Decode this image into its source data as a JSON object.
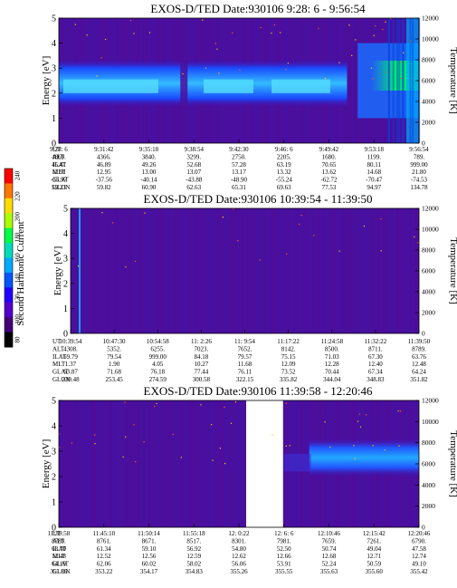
{
  "colorbar": {
    "label": "Second Harmonic Current",
    "ticks": [
      "240",
      "220",
      "200",
      "180",
      "160",
      "140",
      "120",
      "100",
      "80"
    ],
    "colors": [
      "#ff0000",
      "#ff7700",
      "#ffdd00",
      "#aaff00",
      "#00ff44",
      "#00ddbb",
      "#00aaff",
      "#0055ff",
      "#2200ff",
      "#5500cc",
      "#440077",
      "#000000"
    ]
  },
  "chart_data": [
    {
      "type": "heatmap",
      "title": "EXOS-D/TED   Date:930106  9:28: 6 - 9:56:54",
      "ylabel": "Energy [eV]",
      "y2label": "Temperature [K]",
      "ylim": [
        0,
        5
      ],
      "y2lim": [
        0,
        12000
      ],
      "yticks": [
        "0",
        "1",
        "2",
        "3",
        "4",
        "5"
      ],
      "y2ticks": [
        "0",
        "2000",
        "4000",
        "6000",
        "8000",
        "10000",
        "12000"
      ],
      "band": {
        "center_eV": 2.4,
        "width_eV": 1.0
      },
      "gap": null,
      "table": {
        "labels": [
          "UT",
          "ALT",
          "ILAT",
          "MLT",
          "GLAT",
          "GLON"
        ],
        "columns": [
          [
            "9:28: 6",
            "4869.",
            "45.41",
            "12.91",
            "-35.97",
            "59.23"
          ],
          [
            "9:31:42",
            "4366.",
            "46.89",
            "12.95",
            "-37.56",
            "59.82"
          ],
          [
            "9:35:18",
            "3840.",
            "49.26",
            "13.00",
            "-40.14",
            "60.90"
          ],
          [
            "9:38:54",
            "3299.",
            "52.68",
            "13.07",
            "-43.88",
            "62.63"
          ],
          [
            "9:42:30",
            "2750.",
            "57.28",
            "13.17",
            "-48.90",
            "65.31"
          ],
          [
            "9:46: 6",
            "2205.",
            "63.19",
            "13.32",
            "-55.24",
            "69.63"
          ],
          [
            "9:49:42",
            "1680.",
            "70.65",
            "13.62",
            "-62.72",
            "77.53"
          ],
          [
            "9:53:18",
            "1199.",
            "80.11",
            "14.68",
            "-70.47",
            "94.97"
          ],
          [
            "9:56:54",
            "789.",
            "999.00",
            "21.80",
            "-74.53",
            "134.78"
          ]
        ]
      }
    },
    {
      "type": "heatmap",
      "title": "EXOS-D/TED   Date:930106  10:39:54 - 11:39:50",
      "ylabel": "Energy [eV]",
      "y2label": "Temperature [K]",
      "ylim": [
        0,
        5
      ],
      "y2lim": [
        0,
        12000
      ],
      "yticks": [
        "0",
        "1",
        "2",
        "3",
        "4",
        "5"
      ],
      "y2ticks": [
        "0",
        "2000",
        "4000",
        "6000",
        "8000",
        "10000",
        "12000"
      ],
      "band": null,
      "gap": null,
      "table": {
        "labels": [
          "UT",
          "ALT",
          "ILAT",
          "MLT",
          "GLAT",
          "GLON"
        ],
        "columns": [
          [
            "10:39:54",
            "4308.",
            "69.79",
            "1.37",
            "63.87",
            "239.48"
          ],
          [
            "10:47:30",
            "5352.",
            "79.54",
            "1.90",
            "71.68",
            "253.45"
          ],
          [
            "10:54:58",
            "6255.",
            "999.00",
            "4.05",
            "76.18",
            "274.59"
          ],
          [
            "11: 2:26",
            "7023.",
            "84.18",
            "10.27",
            "77.44",
            "300.58"
          ],
          [
            "11: 9:54",
            "7652.",
            "79.57",
            "11.68",
            "76.11",
            "322.15"
          ],
          [
            "11:17:22",
            "8142.",
            "75.15",
            "12.09",
            "73.52",
            "335.82"
          ],
          [
            "11:24:58",
            "8500.",
            "71.03",
            "12.28",
            "70.44",
            "344.04"
          ],
          [
            "11:32:22",
            "8711.",
            "67.30",
            "12.40",
            "67.34",
            "348.83"
          ],
          [
            "11:39:50",
            "8789.",
            "63.76",
            "12.48",
            "64.24",
            "351.82"
          ]
        ]
      }
    },
    {
      "type": "heatmap",
      "title": "EXOS-D/TED   Date:930106  11:39:58 - 12:20:46",
      "ylabel": "Energy [eV]",
      "y2label": "Temperature [K]",
      "ylim": [
        0,
        5
      ],
      "y2lim": [
        0,
        12000
      ],
      "yticks": [
        "0",
        "1",
        "2",
        "3",
        "4",
        "5"
      ],
      "y2ticks": [
        "0",
        "2000",
        "4000",
        "6000",
        "8000",
        "10000",
        "12000"
      ],
      "band": {
        "center_eV": 2.75,
        "width_eV": 0.8
      },
      "gap": {
        "from_col": 4,
        "to_col": 5
      },
      "table": {
        "labels": [
          "UT",
          "ALT",
          "ILAT",
          "MLT",
          "GLAT",
          "GLON"
        ],
        "columns": [
          [
            "11:39:58",
            "8789.",
            "63.70",
            "12.48",
            "64.19",
            "351.86"
          ],
          [
            "11:45:10",
            "8761.",
            "61.34",
            "12.52",
            "62.06",
            "353.22"
          ],
          [
            "11:50:14",
            "8671.",
            "59.10",
            "12.56",
            "60.02",
            "354.17"
          ],
          [
            "11:55:18",
            "8517.",
            "56.92",
            "12.59",
            "58.02",
            "354.83"
          ],
          [
            "12: 0:22",
            "8301.",
            "54.80",
            "12.62",
            "56.06",
            "355.26"
          ],
          [
            "12: 6: 6",
            "7981.",
            "52.50",
            "12.66",
            "53.91",
            "355.55"
          ],
          [
            "12:10:46",
            "7659.",
            "50.74",
            "12.68",
            "52.24",
            "355.63"
          ],
          [
            "12:15:42",
            "7261.",
            "49.04",
            "12.71",
            "50.59",
            "355.60"
          ],
          [
            "12:20:46",
            "6790.",
            "47.58",
            "12.74",
            "49.10",
            "355.42"
          ]
        ]
      }
    }
  ]
}
